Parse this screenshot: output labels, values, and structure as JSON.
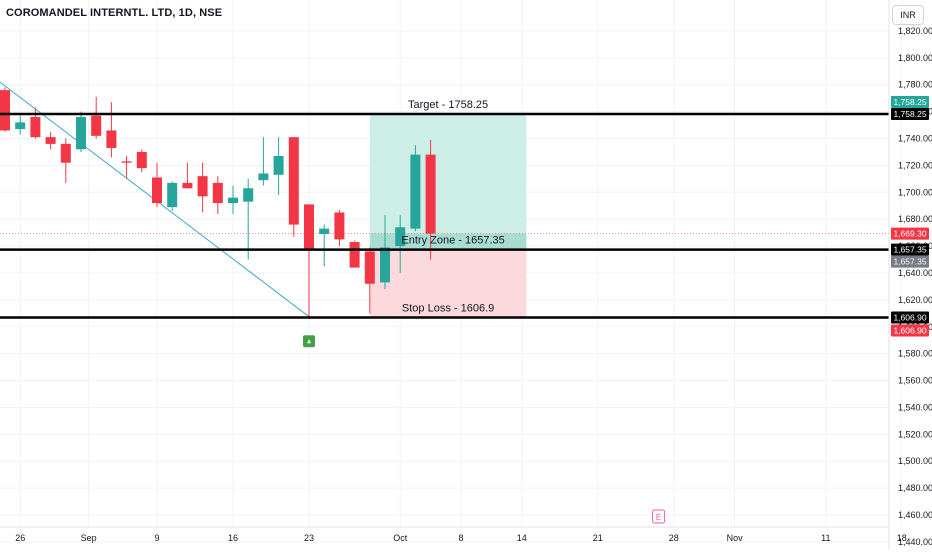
{
  "header": {
    "title": "COROMANDEL INTERNTL. LTD, 1D, NSE",
    "currency": "INR"
  },
  "colors": {
    "up": "#26a69a",
    "down": "#f23645",
    "target_zone": "#cdeee6",
    "entry_zone": "#a9ddd2",
    "stop_zone": "#fbd9dc",
    "trendline": "#3fa9c9",
    "level_line": "#000000",
    "current_price": "#f23645",
    "grid": "#f0f3fa"
  },
  "markers": {
    "earnings_label": "E"
  },
  "chart_data": {
    "type": "candlestick",
    "ylim": [
      1434,
      1843
    ],
    "y_ticks": [
      1440,
      1460,
      1480,
      1500,
      1520,
      1540,
      1560,
      1580,
      1600,
      1620,
      1640,
      1660,
      1680,
      1700,
      1720,
      1740,
      1760,
      1780,
      1800,
      1820
    ],
    "y_tick_labels": [
      "1,440.00",
      "1,460.00",
      "1,480.00",
      "1,500.00",
      "1,520.00",
      "1,540.00",
      "1,560.00",
      "1,580.00",
      "1,600.00",
      "1,620.00",
      "1,640.00",
      "1,660.00",
      "1,680.00",
      "1,700.00",
      "1,720.00",
      "1,740.00",
      "1,760.00",
      "1,780.00",
      "1,800.00",
      "1,820.00"
    ],
    "x_ticks": [
      {
        "label": "26",
        "index": 1
      },
      {
        "label": "Sep",
        "index": 5.5
      },
      {
        "label": "9",
        "index": 10
      },
      {
        "label": "16",
        "index": 15
      },
      {
        "label": "23",
        "index": 20
      },
      {
        "label": "Oct",
        "index": 26
      },
      {
        "label": "8",
        "index": 30
      },
      {
        "label": "14",
        "index": 34
      },
      {
        "label": "21",
        "index": 39
      },
      {
        "label": "28",
        "index": 44
      },
      {
        "label": "Nov",
        "index": 48
      },
      {
        "label": "11",
        "index": 54
      },
      {
        "label": "18",
        "index": 59
      }
    ],
    "candles": [
      {
        "o": 1776,
        "h": 1778,
        "l": 1745,
        "c": 1746
      },
      {
        "o": 1747,
        "h": 1757,
        "l": 1743,
        "c": 1752
      },
      {
        "o": 1756,
        "h": 1763,
        "l": 1740,
        "c": 1741
      },
      {
        "o": 1741,
        "h": 1745,
        "l": 1732,
        "c": 1736
      },
      {
        "o": 1736,
        "h": 1740,
        "l": 1707,
        "c": 1722
      },
      {
        "o": 1732,
        "h": 1760,
        "l": 1730,
        "c": 1756
      },
      {
        "o": 1757,
        "h": 1771,
        "l": 1740,
        "c": 1742
      },
      {
        "o": 1746,
        "h": 1767,
        "l": 1726,
        "c": 1733
      },
      {
        "o": 1723,
        "h": 1727,
        "l": 1710,
        "c": 1722
      },
      {
        "o": 1730,
        "h": 1732,
        "l": 1715,
        "c": 1718
      },
      {
        "o": 1711,
        "h": 1722,
        "l": 1689,
        "c": 1692
      },
      {
        "o": 1689,
        "h": 1708,
        "l": 1686,
        "c": 1707
      },
      {
        "o": 1707,
        "h": 1722,
        "l": 1703,
        "c": 1703
      },
      {
        "o": 1712,
        "h": 1722,
        "l": 1685,
        "c": 1697
      },
      {
        "o": 1707,
        "h": 1712,
        "l": 1684,
        "c": 1692
      },
      {
        "o": 1692,
        "h": 1705,
        "l": 1684,
        "c": 1696
      },
      {
        "o": 1693,
        "h": 1710,
        "l": 1650,
        "c": 1703
      },
      {
        "o": 1709,
        "h": 1741,
        "l": 1705,
        "c": 1714
      },
      {
        "o": 1713,
        "h": 1741,
        "l": 1698,
        "c": 1727
      },
      {
        "o": 1741,
        "h": 1741,
        "l": 1667,
        "c": 1676
      },
      {
        "o": 1691,
        "h": 1691,
        "l": 1606.9,
        "c": 1657
      },
      {
        "o": 1669,
        "h": 1676,
        "l": 1645,
        "c": 1673
      },
      {
        "o": 1685,
        "h": 1687,
        "l": 1660,
        "c": 1665
      },
      {
        "o": 1663,
        "h": 1664,
        "l": 1644,
        "c": 1644
      },
      {
        "o": 1656,
        "h": 1659,
        "l": 1610,
        "c": 1632
      },
      {
        "o": 1633,
        "h": 1683,
        "l": 1628,
        "c": 1659
      },
      {
        "o": 1660,
        "h": 1683,
        "l": 1640,
        "c": 1674
      },
      {
        "o": 1673,
        "h": 1735,
        "l": 1671,
        "c": 1728
      },
      {
        "o": 1728,
        "h": 1739,
        "l": 1650,
        "c": 1669.3
      }
    ],
    "levels": [
      {
        "name": "Target",
        "value": 1758.25,
        "label": "Target - 1758.25",
        "axis_label": "1,758.25"
      },
      {
        "name": "Entry Zone",
        "value": 1657.35,
        "label": "Entry Zone - 1657.35",
        "axis_label": "1,657.35"
      },
      {
        "name": "Stop Loss",
        "value": 1606.9,
        "label": "Stop Loss - 1606.9",
        "axis_label": "1,606.90"
      }
    ],
    "current_price": {
      "value": 1669.3,
      "label": "1,669.30"
    },
    "axis_tags": [
      {
        "value": 1758.25,
        "label": "1,758.25",
        "style": "green"
      },
      {
        "value": 1657.35,
        "label": "1,657.35",
        "style": "gray"
      },
      {
        "value": 1606.9,
        "label": "1,606.90",
        "style": "red"
      }
    ],
    "zones": {
      "start_index": 24,
      "end_index": 34.3,
      "target": [
        1669.3,
        1758.25
      ],
      "entry": [
        1657.35,
        1669.3
      ],
      "stop": [
        1606.9,
        1657.35
      ]
    },
    "trendline": {
      "from": {
        "index": -0.8,
        "value": 1786
      },
      "to": {
        "index": 20,
        "value": 1607.5
      }
    },
    "signal_marker": {
      "index": 20,
      "value": 1590
    },
    "earnings_marker": {
      "index": 43
    }
  }
}
